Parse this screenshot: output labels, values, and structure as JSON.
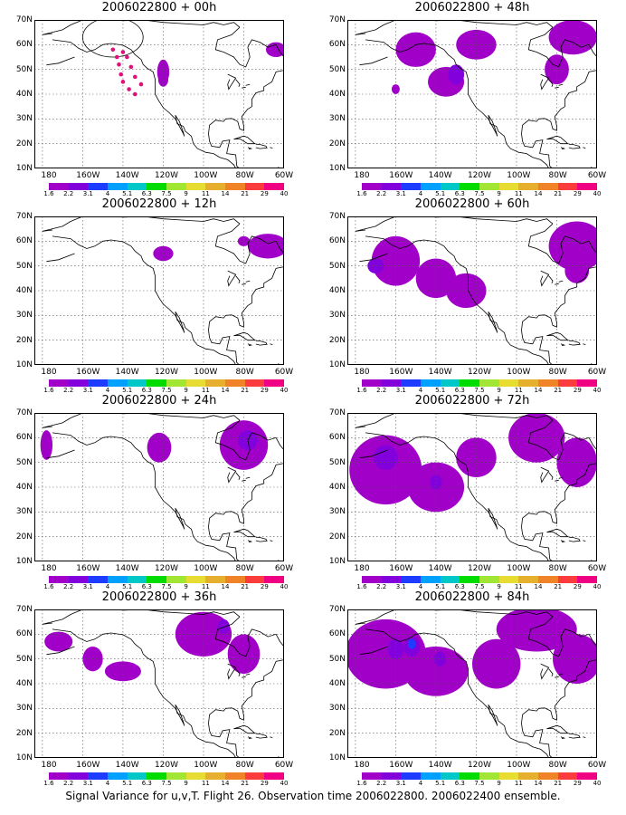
{
  "caption": "Signal Variance for u,v,T. Flight 26. Observation time 2006022800. 2006022400 ensemble.",
  "y_labels": [
    "70N",
    "60N",
    "50N",
    "40N",
    "30N",
    "20N",
    "10N"
  ],
  "x_labels": [
    "180",
    "160W",
    "140W",
    "120W",
    "100W",
    "80W",
    "60W"
  ],
  "colorbar": {
    "colors": [
      "#a000c8",
      "#8200dc",
      "#1e3cff",
      "#00a0ff",
      "#00c8c8",
      "#00dc00",
      "#a0e632",
      "#e6dc32",
      "#e6af2d",
      "#f08228",
      "#fa3c3c",
      "#f00082"
    ],
    "labels": [
      "1.6",
      "2.2",
      "3.1",
      "4",
      "5.1",
      "6.3",
      "7.5",
      "9",
      "11",
      "14",
      "21",
      "29",
      "40"
    ]
  },
  "panels": [
    {
      "title": "2006022800 + 00h"
    },
    {
      "title": "2006022800 + 48h"
    },
    {
      "title": "2006022800 + 12h"
    },
    {
      "title": "2006022800 + 60h"
    },
    {
      "title": "2006022800 + 24h"
    },
    {
      "title": "2006022800 + 72h"
    },
    {
      "title": "2006022800 + 36h"
    },
    {
      "title": "2006022800 + 84h"
    }
  ]
}
